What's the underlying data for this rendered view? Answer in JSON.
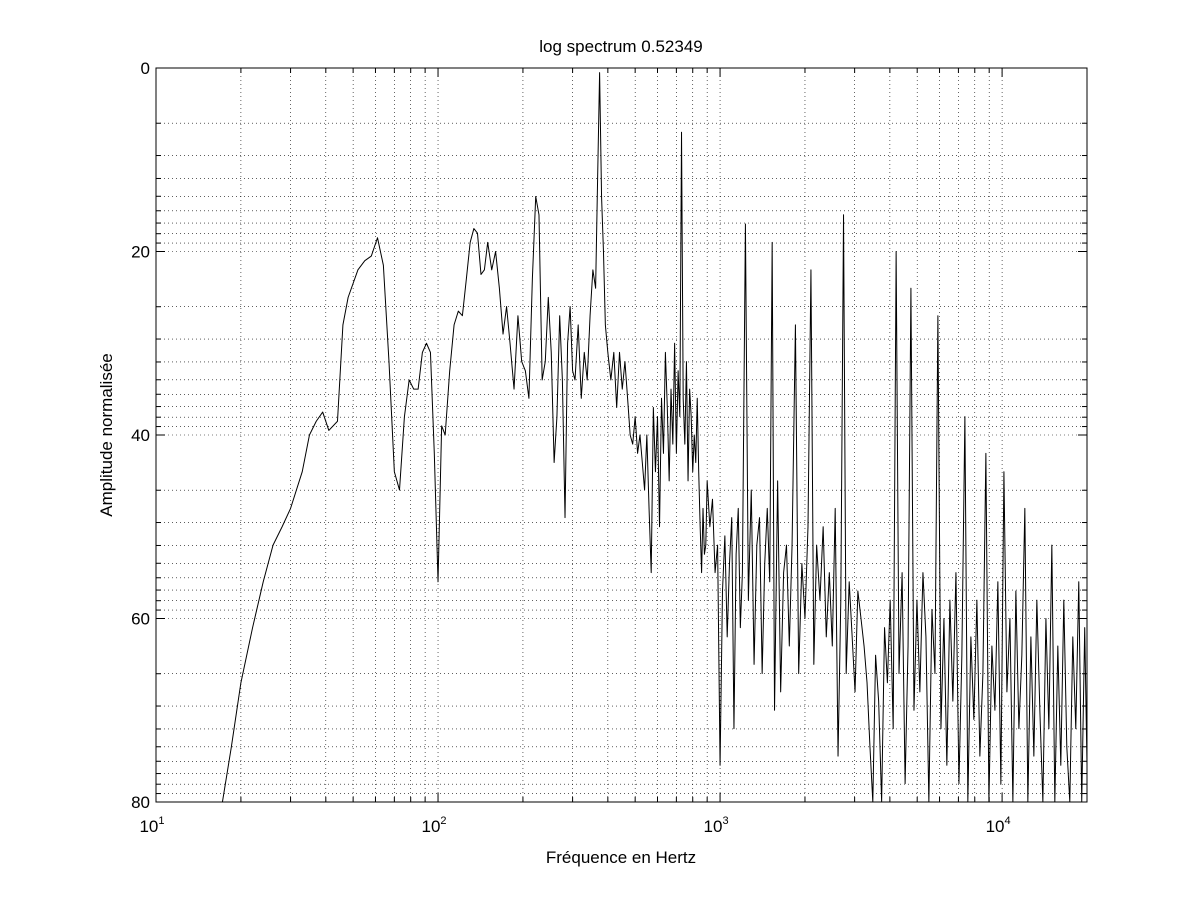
{
  "chart_data": {
    "type": "line",
    "title": "log spectrum 0.52349",
    "xlabel": "Fréquence en Hertz",
    "ylabel": "Amplitude normalisée",
    "x_scale": "log",
    "xlim": [
      10,
      20000
    ],
    "ylim": [
      80,
      0
    ],
    "y_direction": "reversed",
    "grid": true,
    "line_color": "#000000",
    "x_ticks": [
      {
        "value": 10,
        "base": "10",
        "exp": "1"
      },
      {
        "value": 100,
        "base": "10",
        "exp": "2"
      },
      {
        "value": 1000,
        "base": "10",
        "exp": "3"
      },
      {
        "value": 10000,
        "base": "10",
        "exp": "4"
      }
    ],
    "y_ticks": [
      {
        "value": 0,
        "label": "0"
      },
      {
        "value": 20,
        "label": "20"
      },
      {
        "value": 40,
        "label": "40"
      },
      {
        "value": 60,
        "label": "60"
      },
      {
        "value": 80,
        "label": "80"
      }
    ],
    "series": [
      {
        "points": [
          [
            17.2,
            80
          ],
          [
            18.5,
            74
          ],
          [
            20,
            67
          ],
          [
            22,
            61
          ],
          [
            24,
            56
          ],
          [
            26,
            52
          ],
          [
            28,
            50
          ],
          [
            30,
            48
          ],
          [
            33,
            44
          ],
          [
            35,
            40
          ],
          [
            37,
            38.5
          ],
          [
            39,
            37.5
          ],
          [
            41,
            39.5
          ],
          [
            44,
            38.5
          ],
          [
            46,
            28
          ],
          [
            48,
            25
          ],
          [
            52,
            22
          ],
          [
            55,
            21
          ],
          [
            58,
            20.5
          ],
          [
            61,
            18.5
          ],
          [
            64,
            21.5
          ],
          [
            67,
            32
          ],
          [
            70,
            44
          ],
          [
            73,
            46
          ],
          [
            76,
            38
          ],
          [
            79,
            34
          ],
          [
            82,
            35
          ],
          [
            85,
            35
          ],
          [
            88,
            31
          ],
          [
            91,
            30
          ],
          [
            94,
            31
          ],
          [
            97,
            42
          ],
          [
            100,
            56
          ],
          [
            103,
            39
          ],
          [
            106,
            40
          ],
          [
            110,
            33
          ],
          [
            114,
            28
          ],
          [
            118,
            26.5
          ],
          [
            122,
            27
          ],
          [
            126,
            23
          ],
          [
            130,
            19
          ],
          [
            134,
            17.5
          ],
          [
            138,
            18
          ],
          [
            142,
            22.5
          ],
          [
            146,
            22
          ],
          [
            150,
            19
          ],
          [
            155,
            22
          ],
          [
            160,
            20
          ],
          [
            165,
            24
          ],
          [
            170,
            29
          ],
          [
            175,
            26
          ],
          [
            180,
            30
          ],
          [
            186,
            35
          ],
          [
            192,
            27
          ],
          [
            198,
            32
          ],
          [
            204,
            33
          ],
          [
            210,
            36
          ],
          [
            216,
            23
          ],
          [
            222,
            14
          ],
          [
            228,
            16
          ],
          [
            234,
            34
          ],
          [
            240,
            32
          ],
          [
            246,
            25
          ],
          [
            252,
            31
          ],
          [
            258,
            43
          ],
          [
            264,
            38
          ],
          [
            270,
            27
          ],
          [
            276,
            34
          ],
          [
            282,
            49
          ],
          [
            288,
            30
          ],
          [
            294,
            26
          ],
          [
            300,
            33
          ],
          [
            306,
            34
          ],
          [
            314,
            28
          ],
          [
            322,
            36
          ],
          [
            330,
            31
          ],
          [
            338,
            34
          ],
          [
            346,
            27
          ],
          [
            354,
            22
          ],
          [
            362,
            24
          ],
          [
            368,
            12
          ],
          [
            374,
            0.5
          ],
          [
            380,
            14
          ],
          [
            386,
            20
          ],
          [
            392,
            28
          ],
          [
            400,
            31
          ],
          [
            410,
            34
          ],
          [
            420,
            31
          ],
          [
            430,
            37
          ],
          [
            440,
            31
          ],
          [
            450,
            35
          ],
          [
            460,
            32
          ],
          [
            470,
            36
          ],
          [
            480,
            40
          ],
          [
            490,
            41
          ],
          [
            500,
            38
          ],
          [
            510,
            42
          ],
          [
            520,
            40
          ],
          [
            530,
            43
          ],
          [
            540,
            46
          ],
          [
            550,
            40
          ],
          [
            560,
            48
          ],
          [
            570,
            55
          ],
          [
            580,
            37
          ],
          [
            590,
            44
          ],
          [
            600,
            38
          ],
          [
            610,
            50
          ],
          [
            620,
            36
          ],
          [
            630,
            42
          ],
          [
            640,
            31
          ],
          [
            650,
            37
          ],
          [
            660,
            45
          ],
          [
            670,
            35
          ],
          [
            680,
            41
          ],
          [
            690,
            30
          ],
          [
            700,
            42
          ],
          [
            710,
            33
          ],
          [
            720,
            38
          ],
          [
            730,
            7
          ],
          [
            740,
            36
          ],
          [
            750,
            41
          ],
          [
            760,
            32
          ],
          [
            770,
            45
          ],
          [
            780,
            35
          ],
          [
            790,
            38
          ],
          [
            800,
            44
          ],
          [
            810,
            40
          ],
          [
            820,
            43
          ],
          [
            830,
            36
          ],
          [
            840,
            44
          ],
          [
            850,
            50
          ],
          [
            860,
            55
          ],
          [
            870,
            48
          ],
          [
            880,
            53
          ],
          [
            890,
            52
          ],
          [
            900,
            45
          ],
          [
            920,
            50
          ],
          [
            940,
            47
          ],
          [
            960,
            55
          ],
          [
            980,
            52
          ],
          [
            1000,
            76
          ],
          [
            1020,
            57
          ],
          [
            1040,
            51
          ],
          [
            1060,
            62
          ],
          [
            1080,
            54
          ],
          [
            1100,
            49
          ],
          [
            1120,
            72
          ],
          [
            1140,
            53
          ],
          [
            1160,
            48
          ],
          [
            1180,
            61
          ],
          [
            1200,
            55
          ],
          [
            1230,
            17
          ],
          [
            1260,
            58
          ],
          [
            1290,
            46
          ],
          [
            1320,
            65
          ],
          [
            1350,
            52
          ],
          [
            1380,
            49
          ],
          [
            1410,
            66
          ],
          [
            1440,
            54
          ],
          [
            1470,
            48
          ],
          [
            1500,
            56
          ],
          [
            1530,
            19
          ],
          [
            1560,
            70
          ],
          [
            1600,
            45
          ],
          [
            1640,
            68
          ],
          [
            1680,
            55
          ],
          [
            1720,
            52
          ],
          [
            1760,
            63
          ],
          [
            1800,
            52
          ],
          [
            1850,
            28
          ],
          [
            1900,
            66
          ],
          [
            1950,
            54
          ],
          [
            2000,
            60
          ],
          [
            2050,
            50
          ],
          [
            2100,
            22
          ],
          [
            2150,
            65
          ],
          [
            2200,
            52
          ],
          [
            2260,
            58
          ],
          [
            2320,
            50
          ],
          [
            2380,
            62
          ],
          [
            2440,
            55
          ],
          [
            2500,
            63
          ],
          [
            2560,
            48
          ],
          [
            2620,
            75
          ],
          [
            2680,
            58
          ],
          [
            2740,
            16
          ],
          [
            2800,
            66
          ],
          [
            2870,
            56
          ],
          [
            2940,
            62
          ],
          [
            3010,
            68
          ],
          [
            3080,
            57
          ],
          [
            3160,
            60
          ],
          [
            3240,
            63
          ],
          [
            3320,
            67
          ],
          [
            3400,
            74
          ],
          [
            3480,
            80
          ],
          [
            3560,
            64
          ],
          [
            3650,
            69
          ],
          [
            3740,
            80
          ],
          [
            3830,
            61
          ],
          [
            3920,
            67
          ],
          [
            4010,
            58
          ],
          [
            4110,
            72
          ],
          [
            4210,
            20
          ],
          [
            4310,
            66
          ],
          [
            4420,
            55
          ],
          [
            4530,
            78
          ],
          [
            4640,
            63
          ],
          [
            4750,
            24
          ],
          [
            4870,
            70
          ],
          [
            4990,
            58
          ],
          [
            5110,
            68
          ],
          [
            5240,
            55
          ],
          [
            5370,
            62
          ],
          [
            5500,
            80
          ],
          [
            5640,
            59
          ],
          [
            5780,
            66
          ],
          [
            5920,
            27
          ],
          [
            6070,
            72
          ],
          [
            6220,
            60
          ],
          [
            6370,
            76
          ],
          [
            6530,
            58
          ],
          [
            6690,
            69
          ],
          [
            6860,
            55
          ],
          [
            7030,
            78
          ],
          [
            7200,
            64
          ],
          [
            7380,
            38
          ],
          [
            7560,
            80
          ],
          [
            7750,
            62
          ],
          [
            7940,
            71
          ],
          [
            8140,
            58
          ],
          [
            8340,
            75
          ],
          [
            8550,
            66
          ],
          [
            8760,
            42
          ],
          [
            8980,
            80
          ],
          [
            9200,
            63
          ],
          [
            9430,
            70
          ],
          [
            9660,
            56
          ],
          [
            9900,
            78
          ],
          [
            10150,
            44
          ],
          [
            10400,
            68
          ],
          [
            10660,
            60
          ],
          [
            10920,
            80
          ],
          [
            11190,
            57
          ],
          [
            11470,
            72
          ],
          [
            11750,
            64
          ],
          [
            12040,
            48
          ],
          [
            12340,
            80
          ],
          [
            12650,
            62
          ],
          [
            12960,
            75
          ],
          [
            13280,
            58
          ],
          [
            13610,
            70
          ],
          [
            13950,
            80
          ],
          [
            14300,
            60
          ],
          [
            14650,
            72
          ],
          [
            15010,
            52
          ],
          [
            15380,
            80
          ],
          [
            15760,
            63
          ],
          [
            16150,
            76
          ],
          [
            16550,
            58
          ],
          [
            16960,
            74
          ],
          [
            17380,
            80
          ],
          [
            17810,
            62
          ],
          [
            18250,
            72
          ],
          [
            18700,
            56
          ],
          [
            19160,
            80
          ],
          [
            19630,
            61
          ],
          [
            20000,
            76
          ]
        ]
      }
    ]
  }
}
